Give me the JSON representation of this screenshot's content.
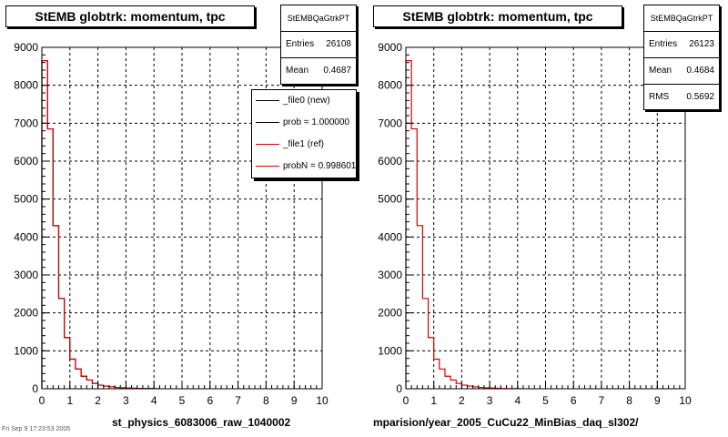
{
  "chart_data": [
    {
      "type": "histogram",
      "title": "StEMB globtrk: momentum, tpc",
      "xlim": [
        0,
        10
      ],
      "ylim": [
        0,
        9000
      ],
      "x_ticks": [
        "0",
        "1",
        "2",
        "3",
        "4",
        "5",
        "6",
        "7",
        "8",
        "9",
        "10"
      ],
      "y_ticks": [
        "0",
        "1000",
        "2000",
        "3000",
        "4000",
        "5000",
        "6000",
        "7000",
        "8000",
        "9000"
      ],
      "grid": true,
      "bin_width": 0.2,
      "series": [
        {
          "name": "_file0 (new)",
          "color": "#000000",
          "values": [
            8650,
            6850,
            4300,
            2380,
            1350,
            780,
            520,
            330,
            230,
            140,
            95,
            70,
            50,
            35,
            25,
            18,
            12,
            8,
            5,
            3,
            2
          ]
        },
        {
          "name": "_file1 (ref)",
          "color": "#d40000",
          "values": [
            8650,
            6850,
            4300,
            2380,
            1350,
            780,
            520,
            330,
            230,
            140,
            95,
            70,
            50,
            35,
            25,
            18,
            12,
            8,
            5,
            3,
            2
          ]
        }
      ],
      "stats": {
        "name": "StEMBQaGtrkPT",
        "entries": "26108",
        "mean": "0.4687"
      },
      "legend": {
        "placement": "top-right",
        "entries": [
          "_file0 (new)",
          "prob = 1.000000",
          "_file1 (ref)",
          "probN = 0.998601"
        ]
      },
      "file_label": "st_physics_6083006_raw_1040002"
    },
    {
      "type": "histogram",
      "title": "StEMB globtrk: momentum, tpc",
      "xlim": [
        0,
        10
      ],
      "ylim": [
        0,
        9000
      ],
      "x_ticks": [
        "0",
        "1",
        "2",
        "3",
        "4",
        "5",
        "6",
        "7",
        "8",
        "9",
        "10"
      ],
      "y_ticks": [
        "0",
        "1000",
        "2000",
        "3000",
        "4000",
        "5000",
        "6000",
        "7000",
        "8000",
        "9000"
      ],
      "grid": true,
      "bin_width": 0.2,
      "series": [
        {
          "name": "",
          "color": "#d40000",
          "values": [
            8650,
            6850,
            4300,
            2380,
            1350,
            780,
            520,
            330,
            230,
            140,
            95,
            70,
            50,
            35,
            25,
            18,
            12,
            8,
            5,
            3,
            2
          ]
        }
      ],
      "stats": {
        "name": "StEMBQaGtrkPT",
        "entries": "26123",
        "mean": "0.4684",
        "rms": "0.5692"
      },
      "file_label": "mparision/year_2005_CuCu22_MinBias_daq_sl302/"
    }
  ],
  "labels": {
    "entries": "Entries",
    "mean": "Mean",
    "rms": "RMS"
  },
  "frame_label": "Fri Sep  9 17:23:53 2005"
}
